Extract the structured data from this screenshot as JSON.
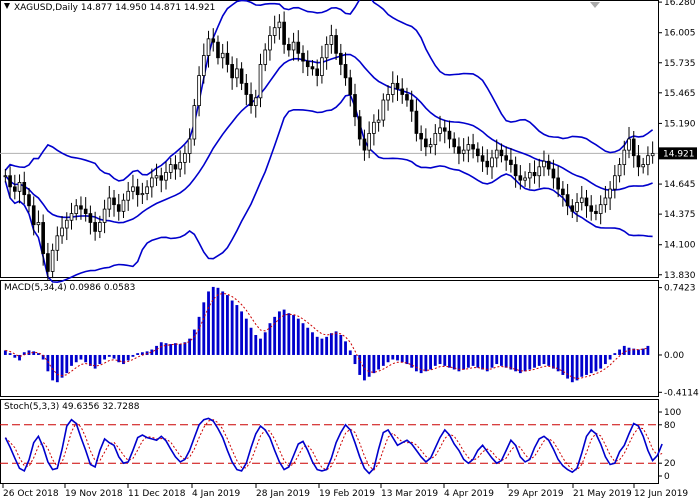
{
  "chart_data": [
    {
      "type": "candlestick",
      "symbol": "XAGUSD",
      "timeframe": "Daily",
      "header": "XAGUSD,Daily  14.877 14.950 14.871 14.921",
      "ohlc_last": {
        "open": 14.877,
        "high": 14.95,
        "low": 14.871,
        "close": 14.921
      },
      "current_price_label": "14.921",
      "y_ticks": [
        "16.280",
        "16.005",
        "15.735",
        "15.465",
        "15.190",
        "14.921",
        "14.645",
        "14.375",
        "14.100",
        "13.830"
      ],
      "ylim": [
        13.81,
        16.29
      ],
      "x_labels": [
        "26 Oct 2018",
        "19 Nov 2018",
        "11 Dec 2018",
        "4 Jan 2019",
        "28 Jan 2019",
        "19 Feb 2019",
        "13 Mar 2019",
        "4 Apr 2019",
        "29 Apr 2019",
        "21 May 2019",
        "12 Jun 2019"
      ],
      "close_series": [
        14.72,
        14.62,
        14.58,
        14.66,
        14.55,
        14.45,
        14.28,
        14.3,
        14.02,
        13.86,
        14.05,
        14.18,
        14.25,
        14.32,
        14.38,
        14.45,
        14.42,
        14.38,
        14.3,
        14.22,
        14.3,
        14.42,
        14.52,
        14.46,
        14.4,
        14.5,
        14.58,
        14.62,
        14.55,
        14.56,
        14.62,
        14.7,
        14.72,
        14.68,
        14.75,
        14.82,
        14.78,
        14.84,
        14.92,
        15.05,
        15.35,
        15.62,
        15.8,
        15.95,
        15.92,
        15.78,
        15.82,
        15.72,
        15.6,
        15.68,
        15.55,
        15.45,
        15.35,
        15.42,
        15.72,
        15.85,
        15.98,
        16.05,
        16.1,
        15.9,
        15.85,
        15.92,
        15.82,
        15.75,
        15.7,
        15.68,
        15.62,
        15.78,
        15.9,
        15.98,
        15.82,
        15.72,
        15.6,
        15.45,
        15.25,
        15.05,
        14.95,
        15.1,
        15.2,
        15.22,
        15.4,
        15.45,
        15.55,
        15.5,
        15.45,
        15.4,
        15.3,
        15.1,
        15.05,
        14.98,
        15.0,
        15.1,
        15.15,
        15.12,
        15.05,
        14.98,
        14.92,
        14.95,
        15.0,
        14.96,
        14.9,
        14.85,
        14.8,
        14.88,
        14.95,
        14.9,
        14.86,
        14.82,
        14.72,
        14.68,
        14.7,
        14.75,
        14.72,
        14.8,
        14.85,
        14.78,
        14.7,
        14.6,
        14.55,
        14.45,
        14.4,
        14.48,
        14.52,
        14.45,
        14.4,
        14.38,
        14.46,
        14.52,
        14.6,
        14.72,
        14.82,
        14.95,
        15.05,
        14.9,
        14.8,
        14.82,
        14.9,
        14.92
      ],
      "bollinger": {
        "upper_color": "#0000cc",
        "middle_color": "#0000cc",
        "lower_color": "#0000cc"
      },
      "colors": {
        "bull": "#ffffff",
        "bear": "#000000",
        "outline": "#000000",
        "bands": "#0000cc",
        "price_line": "#b0b0b0"
      }
    },
    {
      "type": "bar",
      "name": "MACD(5,34,4) 0.0986 0.0583",
      "y_ticks": [
        "0.7423",
        "0.00",
        "-0.4114"
      ],
      "ylim": [
        -0.43,
        0.76
      ],
      "histogram": [
        0.05,
        0.02,
        -0.03,
        -0.06,
        0.03,
        0.05,
        0.04,
        0.02,
        -0.05,
        -0.18,
        -0.28,
        -0.3,
        -0.25,
        -0.2,
        -0.12,
        -0.08,
        -0.05,
        -0.08,
        -0.12,
        -0.15,
        -0.1,
        -0.05,
        -0.02,
        -0.04,
        -0.08,
        -0.1,
        -0.06,
        -0.02,
        0.02,
        0.03,
        0.04,
        0.06,
        0.1,
        0.14,
        0.13,
        0.12,
        0.13,
        0.12,
        0.14,
        0.18,
        0.28,
        0.42,
        0.58,
        0.7,
        0.75,
        0.74,
        0.7,
        0.66,
        0.6,
        0.55,
        0.48,
        0.4,
        0.3,
        0.22,
        0.18,
        0.25,
        0.35,
        0.42,
        0.48,
        0.5,
        0.46,
        0.44,
        0.4,
        0.35,
        0.3,
        0.25,
        0.2,
        0.18,
        0.2,
        0.24,
        0.26,
        0.22,
        0.15,
        0.05,
        -0.1,
        -0.22,
        -0.28,
        -0.24,
        -0.2,
        -0.16,
        -0.12,
        -0.08,
        -0.05,
        -0.06,
        -0.08,
        -0.1,
        -0.14,
        -0.18,
        -0.2,
        -0.18,
        -0.16,
        -0.12,
        -0.1,
        -0.12,
        -0.14,
        -0.16,
        -0.18,
        -0.16,
        -0.14,
        -0.12,
        -0.14,
        -0.16,
        -0.18,
        -0.14,
        -0.1,
        -0.12,
        -0.14,
        -0.16,
        -0.18,
        -0.2,
        -0.18,
        -0.16,
        -0.14,
        -0.12,
        -0.1,
        -0.12,
        -0.15,
        -0.18,
        -0.22,
        -0.26,
        -0.3,
        -0.28,
        -0.24,
        -0.22,
        -0.2,
        -0.18,
        -0.15,
        -0.1,
        -0.05,
        0.02,
        0.06,
        0.1,
        0.08,
        0.07,
        0.06,
        0.07,
        0.1
      ],
      "signal_color": "#cc0000",
      "bar_color": "#0000cc"
    },
    {
      "type": "line",
      "name": "Stoch(5,3,3) 49.6356 32.7288",
      "y_ticks": [
        "100",
        "80",
        "20",
        "0"
      ],
      "ylim": [
        0,
        100
      ],
      "levels": [
        80,
        20
      ],
      "main": [
        60,
        45,
        28,
        12,
        8,
        25,
        52,
        62,
        45,
        22,
        10,
        12,
        42,
        78,
        88,
        82,
        60,
        40,
        18,
        14,
        40,
        58,
        52,
        48,
        30,
        20,
        22,
        40,
        60,
        64,
        60,
        58,
        56,
        62,
        55,
        42,
        30,
        22,
        26,
        40,
        60,
        80,
        88,
        90,
        86,
        74,
        60,
        40,
        22,
        10,
        8,
        20,
        44,
        66,
        78,
        72,
        60,
        40,
        22,
        10,
        14,
        32,
        50,
        54,
        40,
        22,
        10,
        8,
        10,
        28,
        52,
        68,
        80,
        72,
        52,
        30,
        12,
        4,
        12,
        42,
        68,
        72,
        60,
        48,
        52,
        56,
        50,
        40,
        30,
        22,
        28,
        44,
        60,
        72,
        64,
        50,
        40,
        26,
        20,
        26,
        40,
        48,
        38,
        28,
        20,
        24,
        40,
        56,
        48,
        30,
        22,
        26,
        44,
        58,
        62,
        56,
        42,
        26,
        16,
        10,
        6,
        12,
        36,
        62,
        72,
        66,
        50,
        30,
        18,
        20,
        38,
        48,
        66,
        82,
        78,
        62,
        40,
        24,
        32,
        50
      ],
      "main_color": "#0000cc",
      "signal_color": "#cc0000",
      "level_color": "#cc0000"
    }
  ]
}
